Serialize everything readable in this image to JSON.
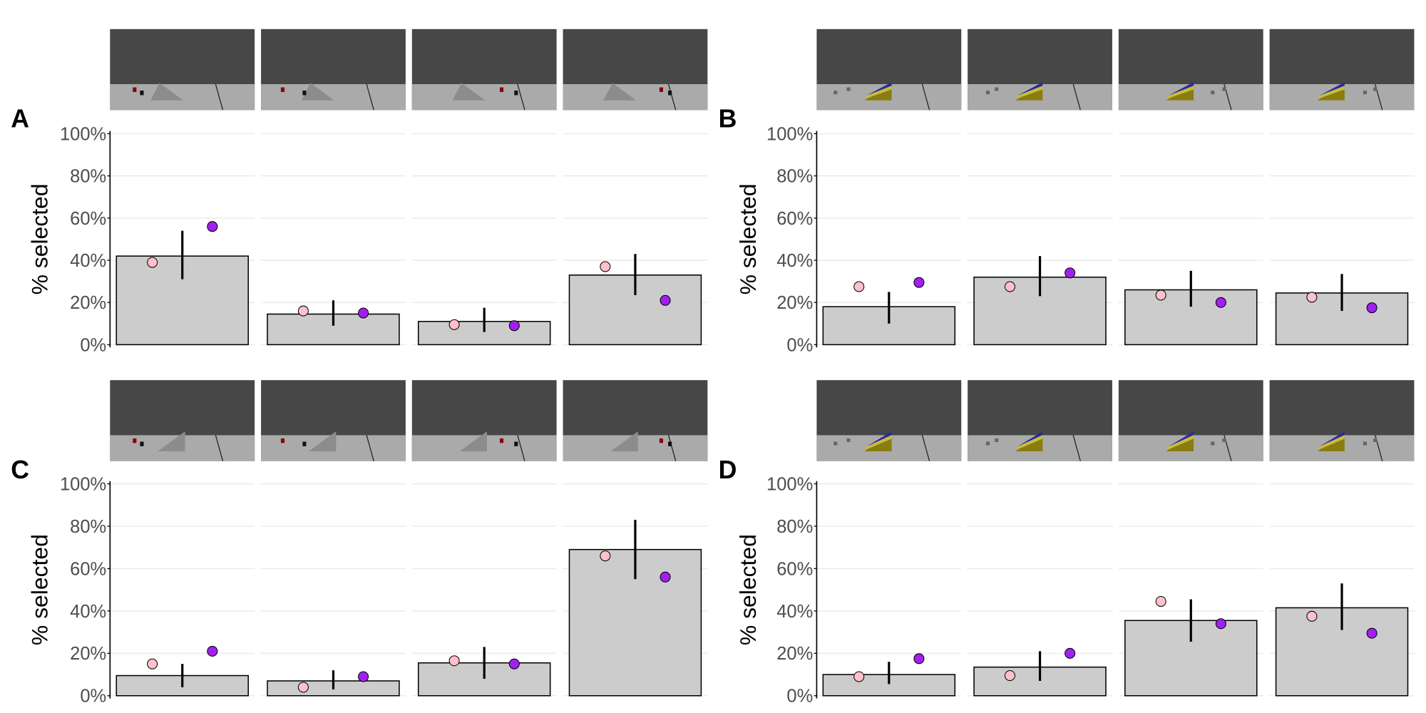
{
  "chart_data": [
    {
      "panel": "A",
      "type": "bar",
      "ylabel": "% selected",
      "ylim": [
        0,
        100
      ],
      "yticks": [
        "0%",
        "20%",
        "40%",
        "60%",
        "80%",
        "100%"
      ],
      "grid": true,
      "bars": [
        42,
        14.5,
        11,
        33
      ],
      "error_low": [
        31,
        9,
        6,
        23.5
      ],
      "error_high": [
        54,
        21,
        17.5,
        43
      ],
      "points_pink": [
        39,
        16,
        9.5,
        37
      ],
      "points_purple": [
        56,
        15,
        9,
        21
      ],
      "ramp": "gray"
    },
    {
      "panel": "B",
      "type": "bar",
      "ylabel": "% selected",
      "ylim": [
        0,
        100
      ],
      "yticks": [
        "0%",
        "20%",
        "40%",
        "60%",
        "80%",
        "100%"
      ],
      "grid": true,
      "bars": [
        18,
        32,
        26,
        24.5
      ],
      "error_low": [
        10,
        23,
        18,
        16
      ],
      "error_high": [
        25,
        42,
        35,
        33.5
      ],
      "points_pink": [
        27.5,
        27.5,
        23.5,
        22.5
      ],
      "points_purple": [
        29.5,
        34,
        20,
        17.5
      ],
      "ramp": "yellow"
    },
    {
      "panel": "C",
      "type": "bar",
      "ylabel": "% selected",
      "ylim": [
        0,
        100
      ],
      "yticks": [
        "0%",
        "20%",
        "40%",
        "60%",
        "80%",
        "100%"
      ],
      "grid": true,
      "bars": [
        9.5,
        7,
        15.5,
        69
      ],
      "error_low": [
        4,
        3,
        8,
        55
      ],
      "error_high": [
        15,
        12,
        23,
        83
      ],
      "points_pink": [
        15,
        4,
        16.5,
        66
      ],
      "points_purple": [
        21,
        9,
        15,
        56
      ],
      "ramp": "gray"
    },
    {
      "panel": "D",
      "type": "bar",
      "ylabel": "% selected",
      "ylim": [
        0,
        100
      ],
      "yticks": [
        "0%",
        "20%",
        "40%",
        "60%",
        "80%",
        "100%"
      ],
      "grid": true,
      "bars": [
        10,
        13.5,
        35.5,
        41.5
      ],
      "error_low": [
        5.5,
        7,
        25.5,
        31
      ],
      "error_high": [
        16,
        21,
        45.5,
        53
      ],
      "points_pink": [
        9,
        9.5,
        44.5,
        37.5
      ],
      "points_purple": [
        17.5,
        20,
        34,
        29.5
      ],
      "ramp": "yellow"
    }
  ],
  "colors": {
    "bar_fill": "#cccccc",
    "pink": "#ffc0cb",
    "purple": "#a020f0",
    "sky": "#474747",
    "floor": "#aaaaaa",
    "ramp_yellow": "#8a7d10",
    "ramp_stripe_yellow": "#c8bc40",
    "ramp_stripe_blue": "#2a2aa0",
    "grid": "#ebebeb",
    "tick_text": "#4d4d4d"
  }
}
